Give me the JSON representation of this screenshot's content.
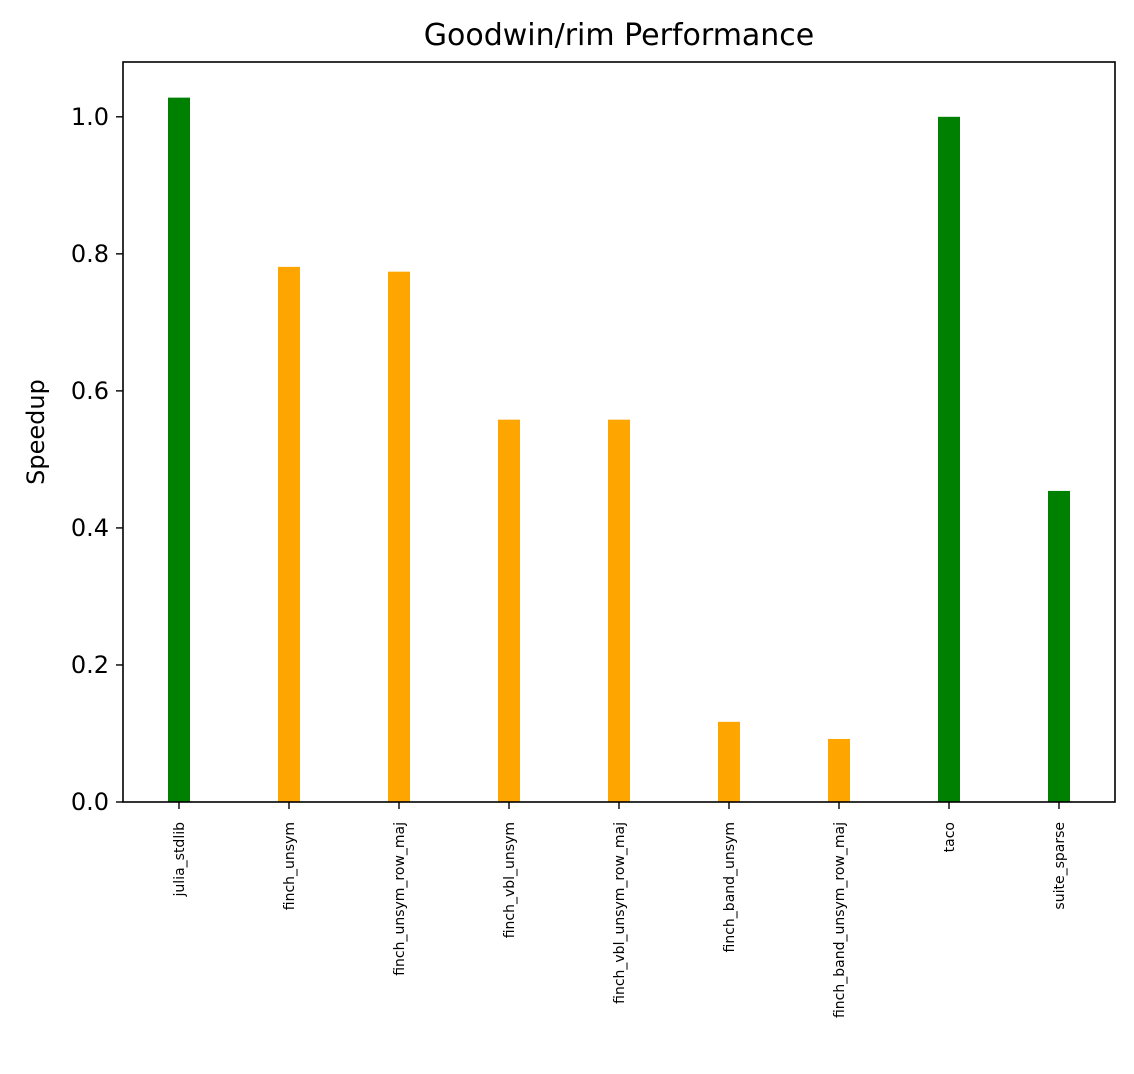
{
  "chart_data": {
    "type": "bar",
    "title": "Goodwin/rim Performance",
    "xlabel": "",
    "ylabel": "Speedup",
    "ylim": [
      0,
      1.08
    ],
    "yticks": [
      0.0,
      0.2,
      0.4,
      0.6,
      0.8,
      1.0
    ],
    "ytick_labels": [
      "0.0",
      "0.2",
      "0.4",
      "0.6",
      "0.8",
      "1.0"
    ],
    "grid": false,
    "legend": "none",
    "categories": [
      "julia_stdlib",
      "finch_unsym",
      "finch_unsym_row_maj",
      "finch_vbl_unsym",
      "finch_vbl_unsym_row_maj",
      "finch_band_unsym",
      "finch_band_unsym_row_maj",
      "taco",
      "suite_sparse"
    ],
    "values": [
      1.028,
      0.781,
      0.774,
      0.558,
      0.558,
      0.117,
      0.092,
      1.0,
      0.454
    ],
    "bar_colors": [
      "#008000",
      "#ffa500",
      "#ffa500",
      "#ffa500",
      "#ffa500",
      "#ffa500",
      "#ffa500",
      "#008000",
      "#008000"
    ]
  }
}
